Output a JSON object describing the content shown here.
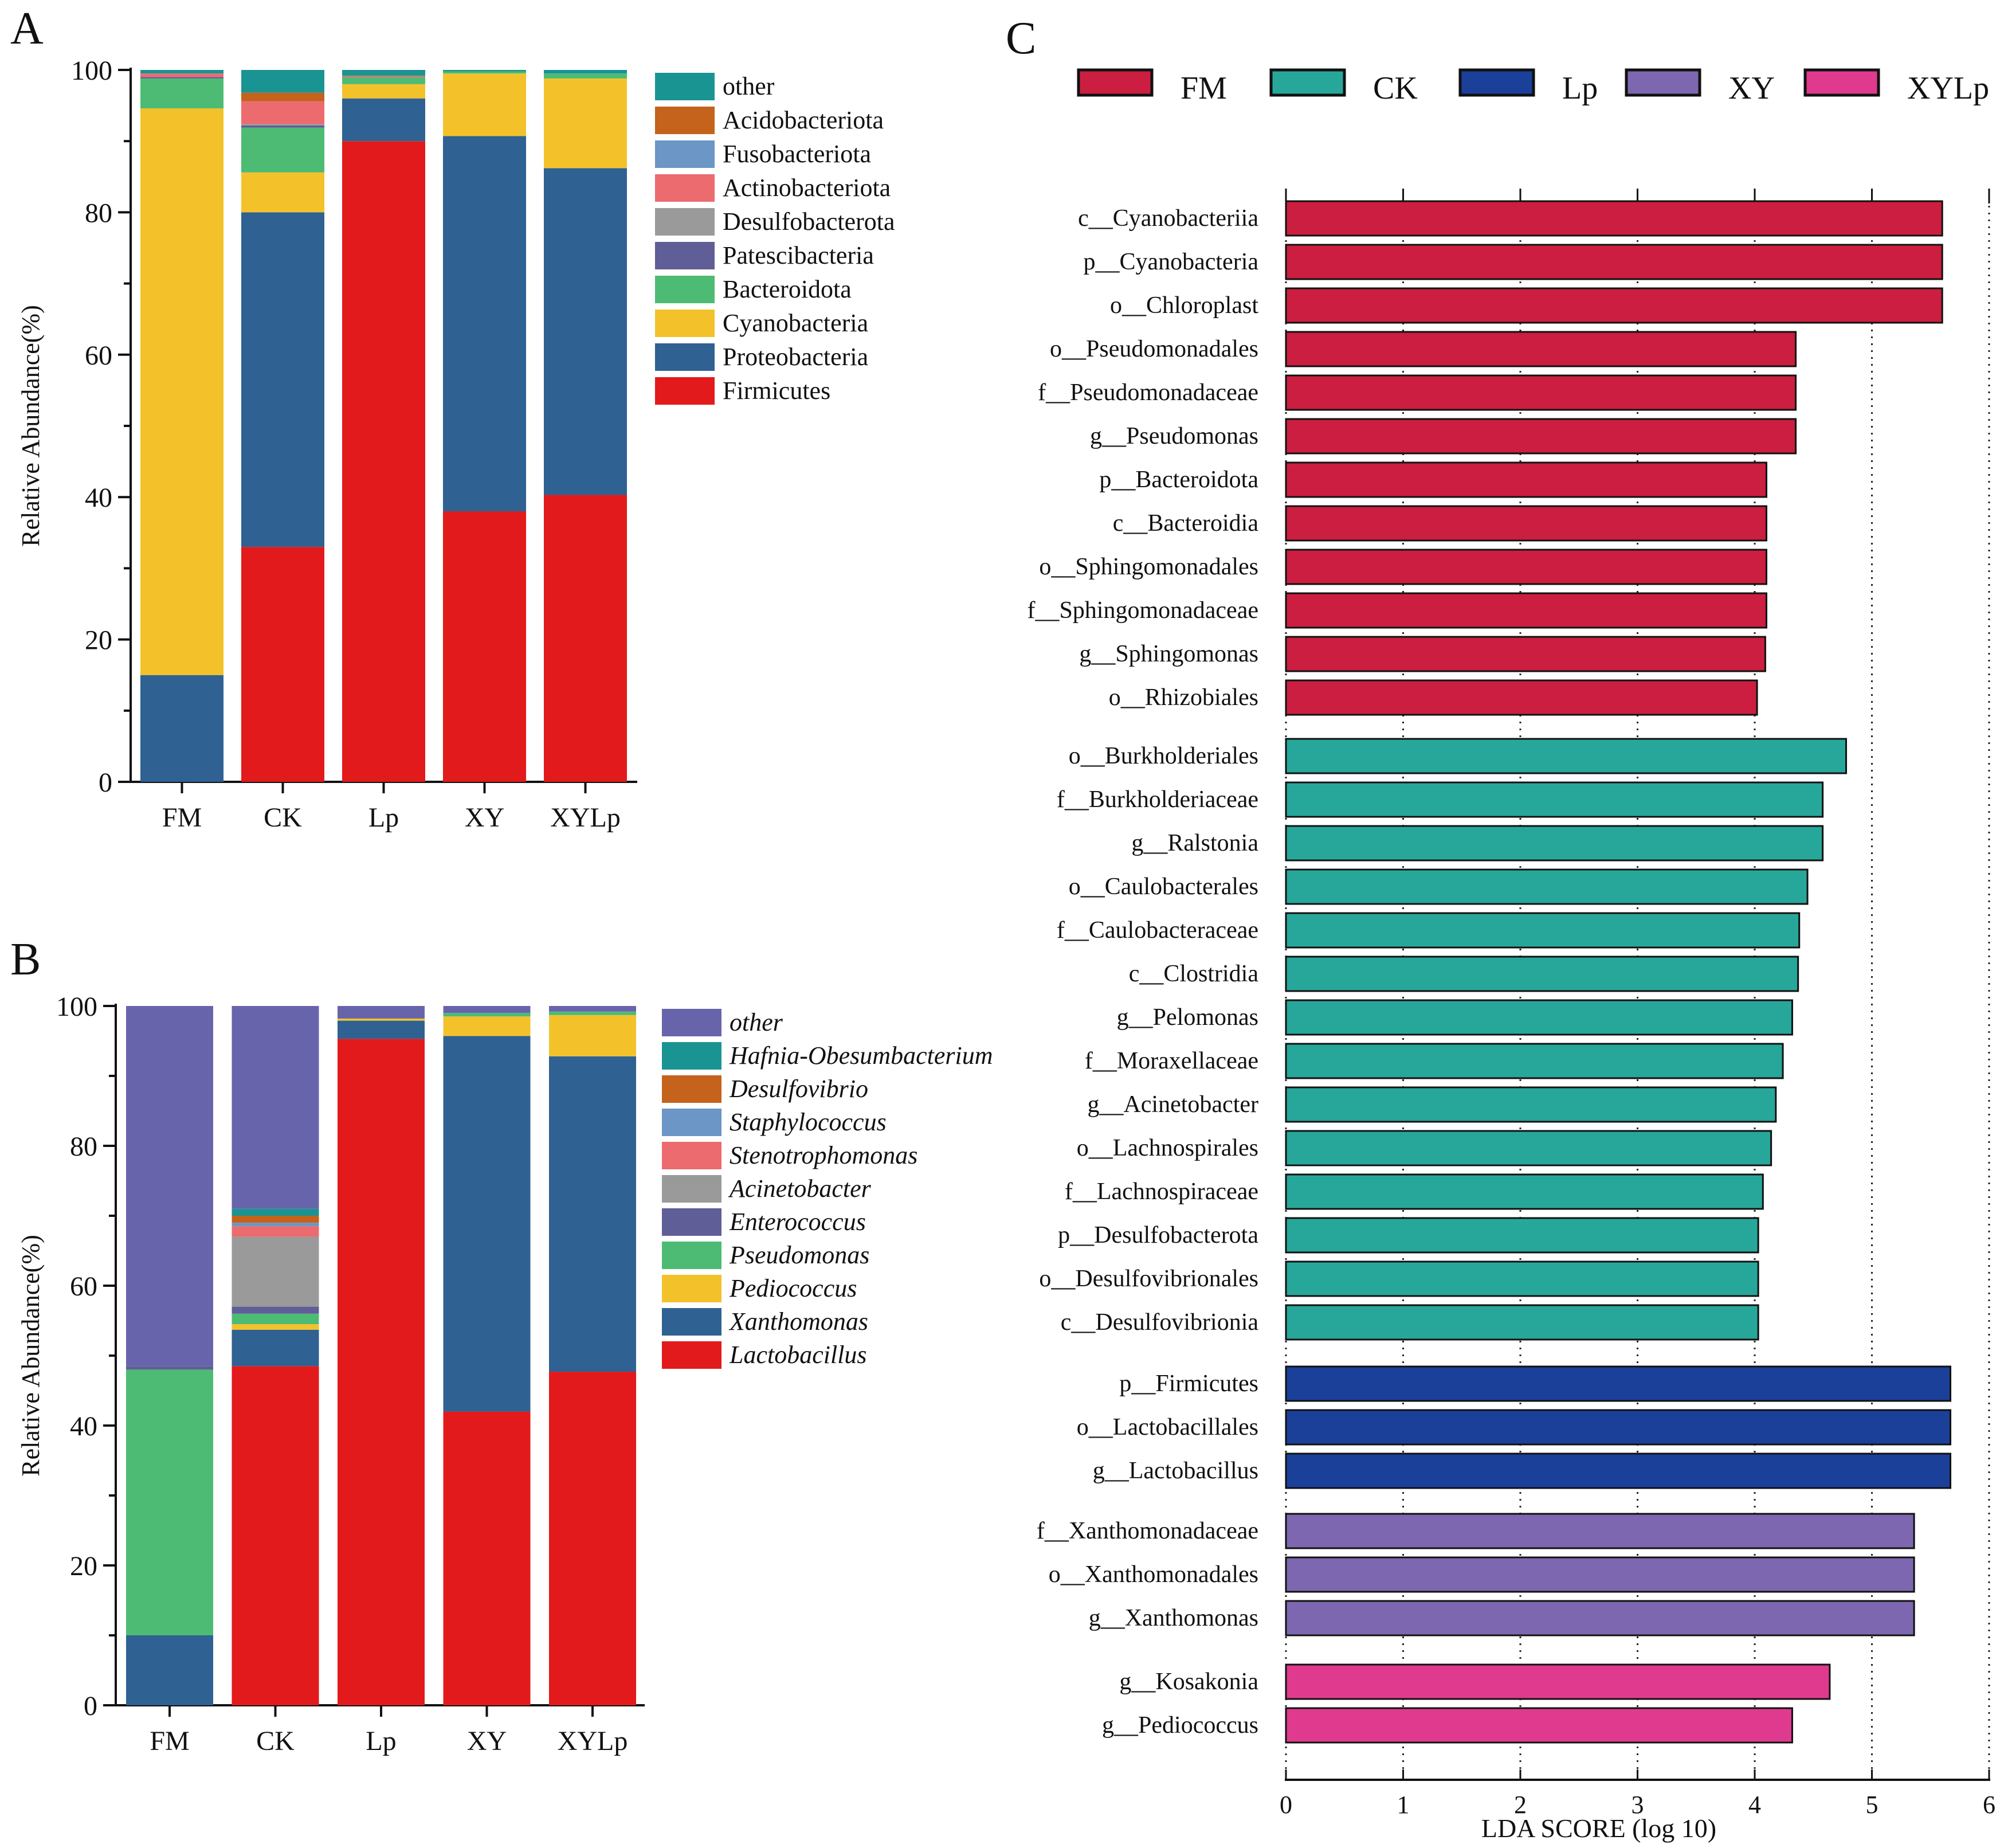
{
  "panel_labels": {
    "a": "A",
    "b": "B",
    "c": "C"
  },
  "colors": {
    "firmicutes": "#e21a1b",
    "proteobacteria": "#2f6192",
    "cyanobacteria": "#f3c22b",
    "bacteroidota": "#4dbb74",
    "patescibacteria": "#5f5e96",
    "desulfobacterota": "#9a9a9a",
    "actinobacteriota": "#ec6b6f",
    "fusobacteriota": "#6b96c6",
    "acidobacteriota": "#c5621b",
    "other_a": "#1a9493",
    "other_b": "#6864ac",
    "lefse": {
      "FM": "#cc1e40",
      "CK": "#27a79a",
      "Lp": "#1a409a",
      "XY": "#7d67b0",
      "XYLp": "#e03a8e"
    },
    "label_highlight": "#e8141e"
  },
  "chart_data": [
    {
      "id": "A",
      "type": "bar",
      "stacked": true,
      "title": "",
      "xlabel": "",
      "ylabel": "Relative Abundance(%)",
      "ylim": [
        0,
        100
      ],
      "yticks": [
        0,
        20,
        40,
        60,
        80,
        100
      ],
      "categories": [
        "FM",
        "CK",
        "Lp",
        "XY",
        "XYLp"
      ],
      "legend": [
        "other",
        "Acidobacteriota",
        "Fusobacteriota",
        "Actinobacteriota",
        "Desulfobacterota",
        "Patescibacteria",
        "Bacteroidota",
        "Cyanobacteria",
        "Proteobacteria",
        "Firmicutes"
      ],
      "series": [
        {
          "name": "Firmicutes",
          "color_key": "firmicutes",
          "values": [
            0,
            33,
            90,
            38,
            40.3
          ]
        },
        {
          "name": "Proteobacteria",
          "color_key": "proteobacteria",
          "values": [
            15,
            47,
            6,
            52.7,
            45.9
          ]
        },
        {
          "name": "Cyanobacteria",
          "color_key": "cyanobacteria",
          "values": [
            79.6,
            5.6,
            2,
            8.8,
            12.6
          ]
        },
        {
          "name": "Bacteroidota",
          "color_key": "bacteroidota",
          "values": [
            4.2,
            6.3,
            1,
            0.3,
            0.7
          ]
        },
        {
          "name": "Patescibacteria",
          "color_key": "patescibacteria",
          "values": [
            0.2,
            0.3,
            0,
            0,
            0
          ]
        },
        {
          "name": "Desulfobacterota",
          "color_key": "desulfobacterota",
          "values": [
            0,
            0.2,
            0,
            0,
            0
          ]
        },
        {
          "name": "Actinobacteriota",
          "color_key": "actinobacteriota",
          "values": [
            0.5,
            3.2,
            0.2,
            0,
            0
          ]
        },
        {
          "name": "Fusobacteriota",
          "color_key": "fusobacteriota",
          "values": [
            0,
            0,
            0,
            0,
            0
          ]
        },
        {
          "name": "Acidobacteriota",
          "color_key": "acidobacteriota",
          "values": [
            0,
            1.2,
            0,
            0,
            0
          ]
        },
        {
          "name": "other",
          "color_key": "other_a",
          "values": [
            0.5,
            3.2,
            0.8,
            0.2,
            0.5
          ]
        }
      ]
    },
    {
      "id": "B",
      "type": "bar",
      "stacked": true,
      "title": "",
      "xlabel": "",
      "ylabel": "Relative Abundance(%)",
      "ylim": [
        0,
        100
      ],
      "yticks": [
        0,
        20,
        40,
        60,
        80,
        100
      ],
      "categories": [
        "FM",
        "CK",
        "Lp",
        "XY",
        "XYLp"
      ],
      "legend": [
        "other",
        "Hafnia-Obesumbacterium",
        "Desulfovibrio",
        "Staphylococcus",
        "Stenotrophomonas",
        "Acinetobacter",
        "Enterococcus",
        "Pseudomonas",
        "Pediococcus",
        "Xanthomonas",
        "Lactobacillus"
      ],
      "series": [
        {
          "name": "Lactobacillus",
          "color_key": "firmicutes",
          "values": [
            0,
            48.5,
            95.3,
            42,
            47.7
          ]
        },
        {
          "name": "Xanthomonas",
          "color_key": "proteobacteria",
          "values": [
            10,
            5.2,
            2.6,
            53.7,
            45.1
          ]
        },
        {
          "name": "Pediococcus",
          "color_key": "cyanobacteria",
          "values": [
            0,
            0.8,
            0.3,
            2.8,
            5.9
          ]
        },
        {
          "name": "Pseudomonas",
          "color_key": "bacteroidota",
          "values": [
            38,
            1.5,
            0,
            0.5,
            0.5
          ]
        },
        {
          "name": "Enterococcus",
          "color_key": "patescibacteria",
          "values": [
            0.5,
            1,
            0,
            0,
            0
          ]
        },
        {
          "name": "Acinetobacter",
          "color_key": "desulfobacterota",
          "values": [
            0,
            10,
            0,
            0,
            0
          ]
        },
        {
          "name": "Stenotrophomonas",
          "color_key": "actinobacteriota",
          "values": [
            0,
            1.5,
            0,
            0,
            0
          ]
        },
        {
          "name": "Staphylococcus",
          "color_key": "fusobacteriota",
          "values": [
            0,
            0.5,
            0,
            0,
            0
          ]
        },
        {
          "name": "Desulfovibrio",
          "color_key": "acidobacteriota",
          "values": [
            0,
            1,
            0,
            0,
            0
          ]
        },
        {
          "name": "Hafnia-Obesumbacterium",
          "color_key": "other_a",
          "values": [
            0,
            1,
            0,
            0,
            0
          ]
        },
        {
          "name": "other",
          "color_key": "other_b",
          "values": [
            51.5,
            29,
            1.8,
            1,
            0.8
          ]
        }
      ]
    },
    {
      "id": "C",
      "type": "bar",
      "orientation": "horizontal",
      "title": "",
      "xlabel": "LDA SCORE (log 10)",
      "ylabel": "",
      "xlim": [
        0,
        6
      ],
      "xticks": [
        0,
        1,
        2,
        3,
        4,
        5,
        6
      ],
      "gridlines": "dotted vertical",
      "legend": [
        "FM",
        "CK",
        "Lp",
        "XY",
        "XYLp"
      ],
      "groups": [
        {
          "name": "FM",
          "bars": [
            {
              "label": "c__Cyanobacteriia",
              "value": 5.6,
              "highlight": false
            },
            {
              "label": "p__Cyanobacteria",
              "value": 5.6,
              "highlight": true
            },
            {
              "label": "o__Chloroplast",
              "value": 5.6,
              "highlight": false
            },
            {
              "label": "o__Pseudomonadales",
              "value": 4.35,
              "highlight": false
            },
            {
              "label": "f__Pseudomonadaceae",
              "value": 4.35,
              "highlight": false
            },
            {
              "label": "g__Pseudomonas",
              "value": 4.35,
              "highlight": true
            },
            {
              "label": "p__Bacteroidota",
              "value": 4.1,
              "highlight": true
            },
            {
              "label": "c__Bacteroidia",
              "value": 4.1,
              "highlight": false
            },
            {
              "label": "o__Sphingomonadales",
              "value": 4.1,
              "highlight": false
            },
            {
              "label": "f__Sphingomonadaceae",
              "value": 4.1,
              "highlight": false
            },
            {
              "label": "g__Sphingomonas",
              "value": 4.09,
              "highlight": true
            },
            {
              "label": "o__Rhizobiales",
              "value": 4.02,
              "highlight": false
            }
          ]
        },
        {
          "name": "CK",
          "bars": [
            {
              "label": "o__Burkholderiales",
              "value": 4.78,
              "highlight": false
            },
            {
              "label": "f__Burkholderiaceae",
              "value": 4.58,
              "highlight": false
            },
            {
              "label": "g__Ralstonia",
              "value": 4.58,
              "highlight": true
            },
            {
              "label": "o__Caulobacterales",
              "value": 4.45,
              "highlight": false
            },
            {
              "label": "f__Caulobacteraceae",
              "value": 4.38,
              "highlight": false
            },
            {
              "label": "c__Clostridia",
              "value": 4.37,
              "highlight": false
            },
            {
              "label": "g__Pelomonas",
              "value": 4.32,
              "highlight": true
            },
            {
              "label": "f__Moraxellaceae",
              "value": 4.24,
              "highlight": false
            },
            {
              "label": "g__Acinetobacter",
              "value": 4.18,
              "highlight": true
            },
            {
              "label": "o__Lachnospirales",
              "value": 4.14,
              "highlight": false
            },
            {
              "label": "f__Lachnospiraceae",
              "value": 4.07,
              "highlight": false
            },
            {
              "label": "p__Desulfobacterota",
              "value": 4.03,
              "highlight": true
            },
            {
              "label": "o__Desulfovibrionales",
              "value": 4.03,
              "highlight": false
            },
            {
              "label": "c__Desulfovibrionia",
              "value": 4.03,
              "highlight": false
            }
          ]
        },
        {
          "name": "Lp",
          "bars": [
            {
              "label": "p__Firmicutes",
              "value": 5.67,
              "highlight": true
            },
            {
              "label": "o__Lactobacillales",
              "value": 5.67,
              "highlight": false
            },
            {
              "label": "g__Lactobacillus",
              "value": 5.67,
              "highlight": true
            }
          ]
        },
        {
          "name": "XY",
          "bars": [
            {
              "label": "f__Xanthomonadaceae",
              "value": 5.36,
              "highlight": false
            },
            {
              "label": "o__Xanthomonadales",
              "value": 5.36,
              "highlight": false
            },
            {
              "label": "g__Xanthomonas",
              "value": 5.36,
              "highlight": true
            }
          ]
        },
        {
          "name": "XYLp",
          "bars": [
            {
              "label": "g__Kosakonia",
              "value": 4.64,
              "highlight": true
            },
            {
              "label": "g__Pediococcus",
              "value": 4.32,
              "highlight": true
            }
          ]
        }
      ]
    }
  ]
}
